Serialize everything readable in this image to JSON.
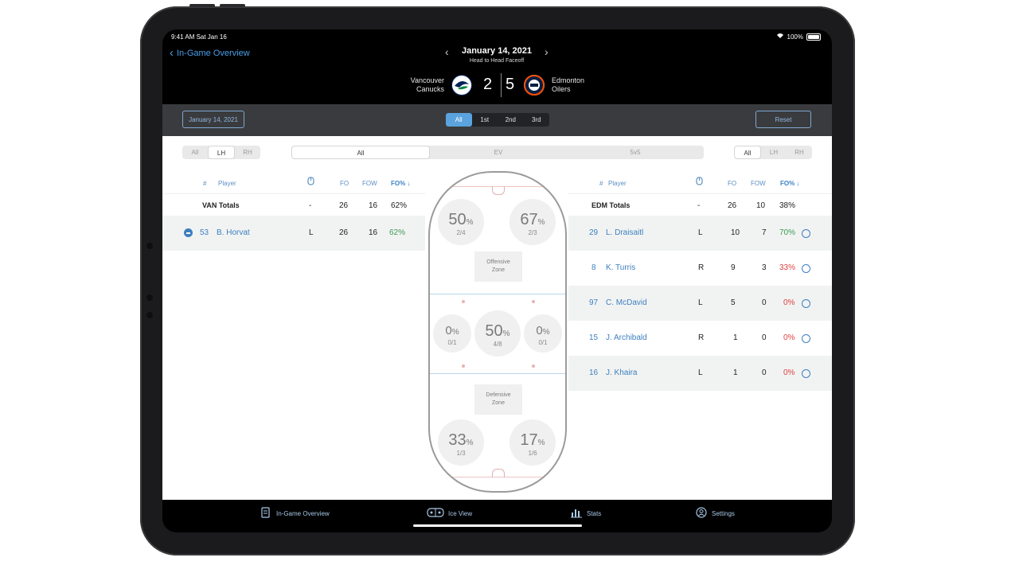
{
  "status": {
    "time": "9:41 AM  Sat Jan 16",
    "battery": "100%"
  },
  "nav": {
    "back_label": "In-Game Overview",
    "date": "January 14, 2021",
    "subtitle": "Head to Head Faceoff"
  },
  "game": {
    "home": {
      "line1": "Vancouver",
      "line2": "Canucks",
      "score": "2",
      "logo_color": "#00205b"
    },
    "away": {
      "line1": "Edmonton",
      "line2": "Oilers",
      "score": "5",
      "logo_color": "#041e42"
    }
  },
  "toolbar": {
    "date_button": "January 14, 2021",
    "periods": [
      "All",
      "1st",
      "2nd",
      "3rd"
    ],
    "active_period": 0,
    "reset": "Reset"
  },
  "filters": {
    "left_hand": [
      "All",
      "LH",
      "RH"
    ],
    "strength": [
      "All",
      "EV",
      "5v5"
    ],
    "right_hand": [
      "All",
      "LH",
      "RH"
    ]
  },
  "columns": {
    "num": "#",
    "player": "Player",
    "fo": "FO",
    "fow": "FOW",
    "fopct": "FO% ↓"
  },
  "van": {
    "totals": {
      "label": "VAN Totals",
      "hand": "-",
      "fo": "26",
      "fow": "16",
      "pct": "62%"
    },
    "players": [
      {
        "num": "53",
        "name": "B. Horvat",
        "hand": "L",
        "fo": "26",
        "fow": "16",
        "pct": "62%"
      }
    ]
  },
  "edm": {
    "totals": {
      "label": "EDM Totals",
      "hand": "-",
      "fo": "26",
      "fow": "10",
      "pct": "38%"
    },
    "players": [
      {
        "num": "29",
        "name": "L. Draisaitl",
        "hand": "L",
        "fo": "10",
        "fow": "7",
        "pct": "70%"
      },
      {
        "num": "8",
        "name": "K. Turris",
        "hand": "R",
        "fo": "9",
        "fow": "3",
        "pct": "33%"
      },
      {
        "num": "97",
        "name": "C. McDavid",
        "hand": "L",
        "fo": "5",
        "fow": "0",
        "pct": "0%"
      },
      {
        "num": "15",
        "name": "J. Archibald",
        "hand": "R",
        "fo": "1",
        "fow": "0",
        "pct": "0%"
      },
      {
        "num": "16",
        "name": "J. Khaira",
        "hand": "L",
        "fo": "1",
        "fow": "0",
        "pct": "0%"
      }
    ]
  },
  "rink": {
    "offensive_label": "Offensive\nZone",
    "defensive_label": "Defensive\nZone",
    "dots": {
      "off_left": {
        "pct": "50",
        "frac": "2/4"
      },
      "off_right": {
        "pct": "67",
        "frac": "2/3"
      },
      "neu_left": {
        "pct": "0",
        "frac": "0/1"
      },
      "center": {
        "pct": "50",
        "frac": "4/8"
      },
      "neu_right": {
        "pct": "0",
        "frac": "0/1"
      },
      "def_left": {
        "pct": "33",
        "frac": "1/3"
      },
      "def_right": {
        "pct": "17",
        "frac": "1/6"
      }
    }
  },
  "tabs": [
    "In-Game Overview",
    "Ice View",
    "Stats",
    "Settings"
  ]
}
